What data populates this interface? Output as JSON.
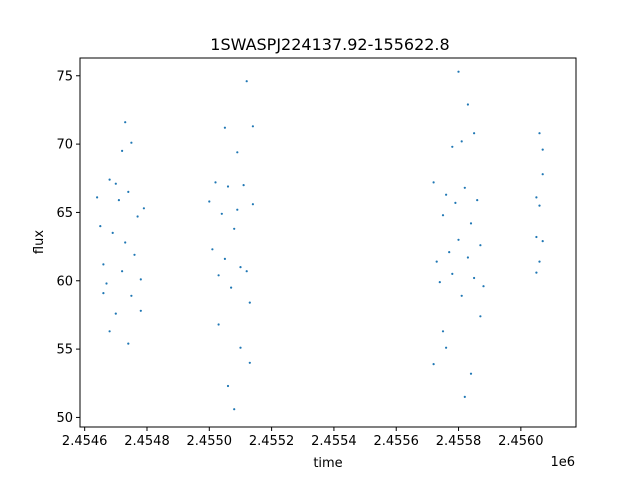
{
  "chart_data": {
    "type": "scatter",
    "title": "1SWASPJ224137.92-155622.8",
    "xlabel": "time",
    "ylabel": "flux",
    "x_offset_label": "1e6",
    "xlim": [
      2.454585,
      2.456177
    ],
    "ylim": [
      49.3,
      76.3
    ],
    "x_ticks": [
      {
        "value": 2.4546,
        "label": "2.4546"
      },
      {
        "value": 2.4548,
        "label": "2.4548"
      },
      {
        "value": 2.455,
        "label": "2.4550"
      },
      {
        "value": 2.4552,
        "label": "2.4552"
      },
      {
        "value": 2.4554,
        "label": "2.4554"
      },
      {
        "value": 2.4556,
        "label": "2.4556"
      },
      {
        "value": 2.4558,
        "label": "2.4558"
      },
      {
        "value": 2.456,
        "label": "2.4560"
      }
    ],
    "y_ticks": [
      {
        "value": 50,
        "label": "50"
      },
      {
        "value": 55,
        "label": "55"
      },
      {
        "value": 60,
        "label": "60"
      },
      {
        "value": 65,
        "label": "65"
      },
      {
        "value": 70,
        "label": "70"
      },
      {
        "value": 75,
        "label": "75"
      }
    ],
    "grid": false,
    "marker_color": "#1f77b4",
    "series": [
      {
        "points": [
          [
            2.45464,
            66.1
          ],
          [
            2.45465,
            64.0
          ],
          [
            2.45466,
            61.2
          ],
          [
            2.45467,
            59.8
          ],
          [
            2.45468,
            67.4
          ],
          [
            2.45469,
            63.5
          ],
          [
            2.4547,
            57.6
          ],
          [
            2.45471,
            65.9
          ],
          [
            2.45472,
            60.7
          ],
          [
            2.45473,
            62.8
          ],
          [
            2.45474,
            66.5
          ],
          [
            2.45475,
            58.9
          ],
          [
            2.45476,
            61.9
          ],
          [
            2.45477,
            64.7
          ],
          [
            2.45478,
            60.1
          ],
          [
            2.45479,
            65.3
          ],
          [
            2.45468,
            56.3
          ],
          [
            2.45472,
            69.5
          ],
          [
            2.45473,
            71.6
          ],
          [
            2.45474,
            55.4
          ],
          [
            2.45475,
            70.1
          ],
          [
            2.4547,
            67.1
          ],
          [
            2.45478,
            57.8
          ],
          [
            2.45466,
            59.1
          ]
        ]
      },
      {
        "points": [
          [
            2.455,
            65.8
          ],
          [
            2.45501,
            62.3
          ],
          [
            2.45502,
            67.2
          ],
          [
            2.45503,
            60.4
          ],
          [
            2.45504,
            64.9
          ],
          [
            2.45505,
            61.6
          ],
          [
            2.45506,
            66.9
          ],
          [
            2.45507,
            59.5
          ],
          [
            2.45508,
            63.8
          ],
          [
            2.45509,
            65.2
          ],
          [
            2.4551,
            61.0
          ],
          [
            2.45511,
            67.0
          ],
          [
            2.45512,
            60.7
          ],
          [
            2.45513,
            58.4
          ],
          [
            2.45514,
            65.6
          ],
          [
            2.45505,
            71.2
          ],
          [
            2.45506,
            52.3
          ],
          [
            2.45508,
            50.6
          ],
          [
            2.4551,
            55.1
          ],
          [
            2.45512,
            74.6
          ],
          [
            2.45513,
            54.0
          ],
          [
            2.45514,
            71.3
          ],
          [
            2.45503,
            56.8
          ],
          [
            2.45509,
            69.4
          ]
        ]
      },
      {
        "points": [
          [
            2.45572,
            67.2
          ],
          [
            2.45573,
            61.4
          ],
          [
            2.45574,
            59.9
          ],
          [
            2.45575,
            64.8
          ],
          [
            2.45576,
            66.3
          ],
          [
            2.45577,
            62.1
          ],
          [
            2.45578,
            60.5
          ],
          [
            2.45579,
            65.7
          ],
          [
            2.4558,
            63.0
          ],
          [
            2.45581,
            58.9
          ],
          [
            2.45582,
            66.8
          ],
          [
            2.45583,
            61.7
          ],
          [
            2.45584,
            64.2
          ],
          [
            2.45585,
            60.2
          ],
          [
            2.45586,
            65.9
          ],
          [
            2.45587,
            62.6
          ],
          [
            2.45588,
            59.6
          ],
          [
            2.45576,
            55.1
          ],
          [
            2.45578,
            69.8
          ],
          [
            2.4558,
            75.3
          ],
          [
            2.45582,
            51.5
          ],
          [
            2.45583,
            72.9
          ],
          [
            2.45584,
            53.2
          ],
          [
            2.45585,
            70.8
          ],
          [
            2.45587,
            57.4
          ],
          [
            2.45572,
            53.9
          ],
          [
            2.45575,
            56.3
          ],
          [
            2.45581,
            70.2
          ]
        ]
      },
      {
        "points": [
          [
            2.45605,
            60.6
          ],
          [
            2.45606,
            65.5
          ],
          [
            2.45607,
            67.8
          ],
          [
            2.45605,
            63.2
          ],
          [
            2.45606,
            61.4
          ],
          [
            2.45607,
            69.6
          ],
          [
            2.45605,
            66.1
          ],
          [
            2.45607,
            62.9
          ],
          [
            2.45606,
            70.8
          ]
        ]
      }
    ]
  }
}
